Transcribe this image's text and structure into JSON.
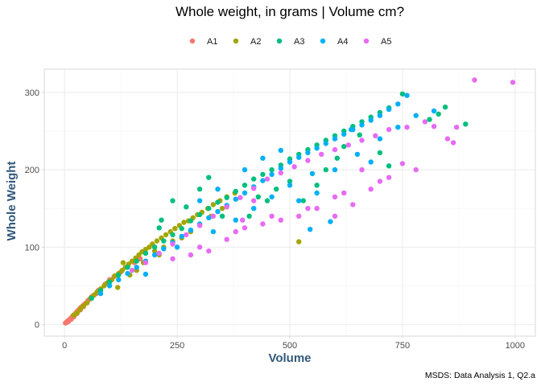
{
  "chart_data": {
    "type": "scatter",
    "title": "Whole weight, in grams | Volume cm?",
    "xlabel": "Volume",
    "ylabel": "Whole Weight",
    "caption": "MSDS: Data Analysis 1, Q2.a",
    "xlim": [
      -45,
      1045
    ],
    "ylim": [
      -15,
      330
    ],
    "xticks": [
      0,
      250,
      500,
      750,
      1000
    ],
    "yticks": [
      0,
      100,
      200,
      300
    ],
    "grid": true,
    "legend_position": "top",
    "series": [
      {
        "name": "A1",
        "color": "#F8766D",
        "points": [
          [
            2,
            2
          ],
          [
            4,
            3
          ],
          [
            6,
            4
          ],
          [
            8,
            5
          ],
          [
            10,
            6
          ],
          [
            12,
            7
          ],
          [
            14,
            8
          ],
          [
            16,
            9
          ],
          [
            18,
            11
          ],
          [
            20,
            12
          ],
          [
            22,
            13
          ],
          [
            25,
            15
          ],
          [
            28,
            17
          ],
          [
            30,
            18
          ],
          [
            33,
            20
          ],
          [
            36,
            22
          ],
          [
            40,
            24
          ],
          [
            44,
            26
          ],
          [
            48,
            28
          ],
          [
            52,
            31
          ],
          [
            56,
            33
          ],
          [
            60,
            36
          ],
          [
            65,
            38
          ],
          [
            70,
            40
          ],
          [
            75,
            44
          ],
          [
            80,
            46
          ],
          [
            90,
            52
          ],
          [
            100,
            58
          ],
          [
            110,
            62
          ],
          [
            125,
            68
          ],
          [
            140,
            75
          ],
          [
            155,
            80
          ],
          [
            168,
            85
          ],
          [
            5,
            3
          ],
          [
            9,
            4
          ],
          [
            15,
            7
          ],
          [
            21,
            10
          ],
          [
            27,
            14
          ],
          [
            35,
            19
          ],
          [
            42,
            23
          ]
        ]
      },
      {
        "name": "A2",
        "color": "#A3A500",
        "points": [
          [
            20,
            12
          ],
          [
            28,
            15
          ],
          [
            35,
            20
          ],
          [
            42,
            24
          ],
          [
            50,
            28
          ],
          [
            58,
            34
          ],
          [
            65,
            38
          ],
          [
            72,
            42
          ],
          [
            80,
            46
          ],
          [
            88,
            50
          ],
          [
            95,
            54
          ],
          [
            105,
            58
          ],
          [
            112,
            63
          ],
          [
            120,
            66
          ],
          [
            128,
            70
          ],
          [
            135,
            74
          ],
          [
            142,
            78
          ],
          [
            150,
            82
          ],
          [
            158,
            86
          ],
          [
            165,
            90
          ],
          [
            172,
            94
          ],
          [
            180,
            97
          ],
          [
            188,
            100
          ],
          [
            195,
            104
          ],
          [
            205,
            108
          ],
          [
            215,
            112
          ],
          [
            225,
            116
          ],
          [
            235,
            120
          ],
          [
            245,
            124
          ],
          [
            255,
            128
          ],
          [
            265,
            132
          ],
          [
            275,
            134
          ],
          [
            285,
            138
          ],
          [
            295,
            142
          ],
          [
            305,
            145
          ],
          [
            318,
            150
          ],
          [
            330,
            155
          ],
          [
            345,
            160
          ],
          [
            360,
            165
          ],
          [
            378,
            170
          ],
          [
            130,
            80
          ],
          [
            145,
            64
          ],
          [
            160,
            70
          ],
          [
            175,
            80
          ],
          [
            200,
            95
          ],
          [
            220,
            100
          ],
          [
            240,
            108
          ],
          [
            260,
            112
          ],
          [
            300,
            128
          ],
          [
            325,
            140
          ],
          [
            350,
            150
          ],
          [
            520,
            107
          ],
          [
            118,
            48
          ],
          [
            210,
            90
          ],
          [
            280,
            120
          ]
        ]
      },
      {
        "name": "A3",
        "color": "#00BF7D",
        "points": [
          [
            60,
            34
          ],
          [
            80,
            44
          ],
          [
            100,
            55
          ],
          [
            120,
            64
          ],
          [
            140,
            74
          ],
          [
            160,
            82
          ],
          [
            180,
            92
          ],
          [
            200,
            100
          ],
          [
            220,
            108
          ],
          [
            240,
            116
          ],
          [
            260,
            124
          ],
          [
            280,
            134
          ],
          [
            300,
            142
          ],
          [
            320,
            150
          ],
          [
            340,
            158
          ],
          [
            360,
            164
          ],
          [
            380,
            172
          ],
          [
            400,
            180
          ],
          [
            420,
            188
          ],
          [
            440,
            194
          ],
          [
            460,
            200
          ],
          [
            480,
            206
          ],
          [
            500,
            214
          ],
          [
            520,
            220
          ],
          [
            540,
            226
          ],
          [
            560,
            232
          ],
          [
            580,
            238
          ],
          [
            600,
            244
          ],
          [
            620,
            250
          ],
          [
            640,
            256
          ],
          [
            660,
            262
          ],
          [
            680,
            268
          ],
          [
            700,
            274
          ],
          [
            720,
            280
          ],
          [
            750,
            298
          ],
          [
            810,
            265
          ],
          [
            830,
            272
          ],
          [
            845,
            281
          ],
          [
            890,
            259
          ],
          [
            240,
            160
          ],
          [
            300,
            175
          ],
          [
            320,
            190
          ],
          [
            215,
            135
          ],
          [
            270,
            152
          ],
          [
            410,
            140
          ],
          [
            450,
            160
          ],
          [
            500,
            185
          ],
          [
            530,
            160
          ],
          [
            580,
            200
          ],
          [
            620,
            230
          ],
          [
            655,
            245
          ],
          [
            700,
            222
          ],
          [
            720,
            205
          ],
          [
            210,
            125
          ],
          [
            350,
            140
          ],
          [
            430,
            165
          ],
          [
            470,
            175
          ],
          [
            560,
            180
          ],
          [
            605,
            215
          ]
        ]
      },
      {
        "name": "A4",
        "color": "#00B0F6",
        "points": [
          [
            80,
            40
          ],
          [
            100,
            50
          ],
          [
            120,
            58
          ],
          [
            140,
            66
          ],
          [
            160,
            74
          ],
          [
            180,
            82
          ],
          [
            200,
            90
          ],
          [
            220,
            98
          ],
          [
            240,
            106
          ],
          [
            260,
            114
          ],
          [
            280,
            122
          ],
          [
            300,
            130
          ],
          [
            320,
            138
          ],
          [
            340,
            146
          ],
          [
            360,
            154
          ],
          [
            380,
            162
          ],
          [
            400,
            170
          ],
          [
            420,
            178
          ],
          [
            440,
            186
          ],
          [
            460,
            194
          ],
          [
            480,
            202
          ],
          [
            500,
            210
          ],
          [
            520,
            216
          ],
          [
            540,
            222
          ],
          [
            560,
            228
          ],
          [
            580,
            234
          ],
          [
            600,
            240
          ],
          [
            620,
            246
          ],
          [
            640,
            252
          ],
          [
            660,
            258
          ],
          [
            680,
            264
          ],
          [
            700,
            270
          ],
          [
            720,
            278
          ],
          [
            740,
            285
          ],
          [
            760,
            296
          ],
          [
            780,
            270
          ],
          [
            820,
            276
          ],
          [
            636,
            252
          ],
          [
            300,
            160
          ],
          [
            340,
            175
          ],
          [
            400,
            200
          ],
          [
            440,
            215
          ],
          [
            480,
            225
          ],
          [
            520,
            160
          ],
          [
            560,
            170
          ],
          [
            600,
            200
          ],
          [
            545,
            123
          ],
          [
            590,
            133
          ],
          [
            180,
            65
          ],
          [
            250,
            100
          ],
          [
            330,
            120
          ],
          [
            380,
            135
          ],
          [
            420,
            150
          ],
          [
            460,
            165
          ],
          [
            500,
            180
          ],
          [
            550,
            195
          ],
          [
            650,
            220
          ],
          [
            700,
            240
          ],
          [
            740,
            255
          ],
          [
            680,
            210
          ]
        ]
      },
      {
        "name": "A5",
        "color": "#E76BF3",
        "points": [
          [
            150,
            70
          ],
          [
            180,
            80
          ],
          [
            210,
            92
          ],
          [
            240,
            104
          ],
          [
            270,
            116
          ],
          [
            300,
            128
          ],
          [
            330,
            140
          ],
          [
            360,
            152
          ],
          [
            390,
            164
          ],
          [
            420,
            176
          ],
          [
            450,
            188
          ],
          [
            480,
            196
          ],
          [
            510,
            204
          ],
          [
            540,
            212
          ],
          [
            570,
            220
          ],
          [
            600,
            226
          ],
          [
            630,
            232
          ],
          [
            660,
            238
          ],
          [
            690,
            244
          ],
          [
            720,
            252
          ],
          [
            760,
            255
          ],
          [
            800,
            262
          ],
          [
            820,
            256
          ],
          [
            850,
            240
          ],
          [
            863,
            235
          ],
          [
            870,
            255
          ],
          [
            910,
            316
          ],
          [
            995,
            313
          ],
          [
            280,
            90
          ],
          [
            320,
            95
          ],
          [
            360,
            110
          ],
          [
            400,
            125
          ],
          [
            440,
            130
          ],
          [
            480,
            135
          ],
          [
            520,
            140
          ],
          [
            560,
            150
          ],
          [
            600,
            165
          ],
          [
            640,
            155
          ],
          [
            680,
            175
          ],
          [
            720,
            190
          ],
          [
            750,
            208
          ],
          [
            240,
            85
          ],
          [
            300,
            100
          ],
          [
            380,
            120
          ],
          [
            460,
            140
          ],
          [
            540,
            150
          ],
          [
            620,
            170
          ],
          [
            700,
            185
          ],
          [
            780,
            200
          ],
          [
            660,
            200
          ],
          [
            600,
            140
          ],
          [
            395,
            135
          ],
          [
            420,
            160
          ]
        ]
      }
    ]
  }
}
